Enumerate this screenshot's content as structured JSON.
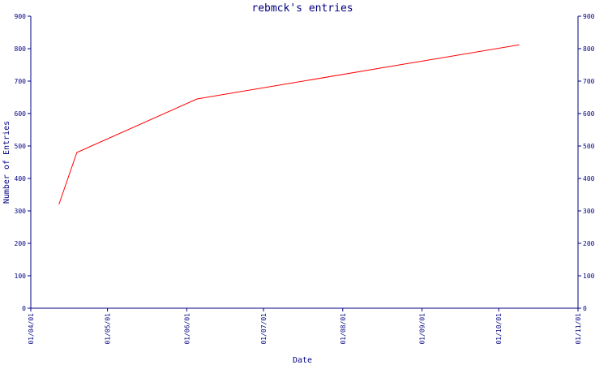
{
  "chart_data": {
    "type": "line",
    "title": "rebmck's entries",
    "xlabel": "Date",
    "ylabel": "Number of Entries",
    "x_tick_labels": [
      "01/04/01",
      "01/05/01",
      "01/06/01",
      "01/07/01",
      "01/08/01",
      "01/09/01",
      "01/10/01",
      "01/11/01"
    ],
    "x_ticks": [
      "2001-04-01",
      "2001-05-01",
      "2001-06-01",
      "2001-07-01",
      "2001-08-01",
      "2001-09-01",
      "2001-10-01",
      "2001-11-01"
    ],
    "xlim": [
      "2001-04-01",
      "2001-11-01"
    ],
    "ylim": [
      0,
      900
    ],
    "y_ticks": [
      0,
      100,
      200,
      300,
      400,
      500,
      600,
      700,
      800,
      900
    ],
    "y_axis_right": true,
    "grid": false,
    "series": [
      {
        "color": "#ff0000",
        "points": [
          {
            "x": "2001-04-12",
            "y": 320
          },
          {
            "x": "2001-04-19",
            "y": 480
          },
          {
            "x": "2001-06-05",
            "y": 645
          },
          {
            "x": "2001-10-09",
            "y": 812
          }
        ]
      }
    ]
  },
  "colors": {
    "axis": "#000080",
    "text": "#000080",
    "line": "#ff0000",
    "background": "#ffffff"
  }
}
